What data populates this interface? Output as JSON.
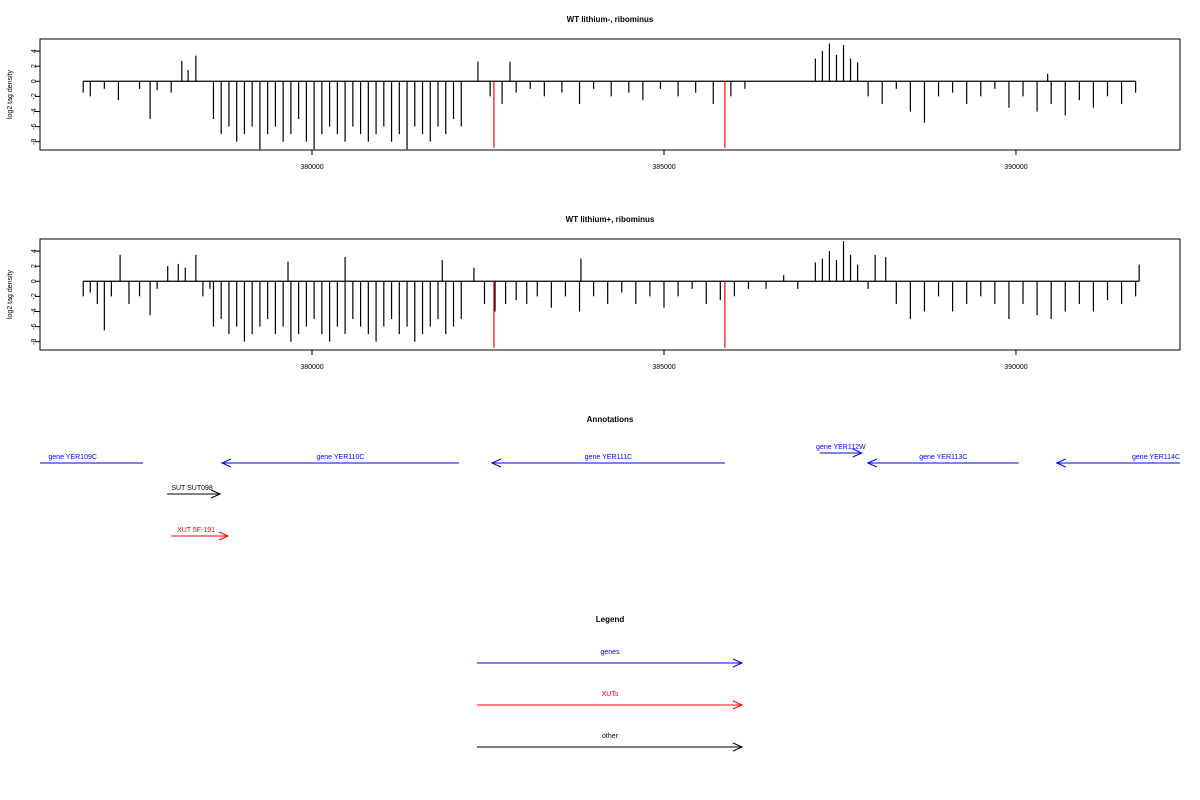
{
  "chart_data": [
    {
      "type": "bar",
      "title": "WT lithium-, ribominus",
      "ylabel": "log2 tag density",
      "color": "#000000",
      "xlim": [
        376136,
        392330
      ],
      "ylim": [
        -9.1,
        5.6
      ],
      "xticks": [
        380000,
        385000,
        390000
      ],
      "yticks": [
        -8,
        -6,
        -4,
        -2,
        0,
        2,
        4
      ],
      "x": [
        376750,
        376850,
        377050,
        377250,
        377550,
        377700,
        377800,
        378000,
        378150,
        378240,
        378350,
        378600,
        378710,
        378820,
        378930,
        379040,
        379150,
        379260,
        379370,
        379480,
        379590,
        379700,
        379810,
        379920,
        380030,
        380140,
        380250,
        380360,
        380470,
        380580,
        380690,
        380800,
        380910,
        381020,
        381130,
        381240,
        381350,
        381460,
        381570,
        381680,
        381790,
        381900,
        382010,
        382120,
        382357,
        382530,
        382700,
        382812,
        382900,
        383100,
        383300,
        383550,
        383800,
        384000,
        384250,
        384500,
        384700,
        384950,
        385200,
        385450,
        385700,
        385950,
        386150,
        387150,
        387250,
        387350,
        387450,
        387550,
        387650,
        387750,
        387900,
        388100,
        388300,
        388500,
        388700,
        388900,
        389100,
        389300,
        389500,
        389700,
        389900,
        390100,
        390300,
        390450,
        390500,
        390700,
        390900,
        391100,
        391300,
        391500,
        391700
      ],
      "values": [
        -1.5,
        -2,
        -1,
        -2.5,
        -1,
        -5,
        -1.2,
        -1.5,
        2.7,
        1.5,
        3.4,
        -5,
        -7,
        -6,
        -8,
        -7,
        -6,
        -9,
        -7,
        -6,
        -8,
        -7,
        -5,
        -8,
        -9,
        -7,
        -6,
        -7,
        -8,
        -6,
        -7,
        -8,
        -7,
        -6,
        -8,
        -7,
        -9,
        -6,
        -7,
        -8,
        -6,
        -7,
        -5,
        -6,
        2.6,
        -2,
        -3,
        2.6,
        -1.5,
        -1,
        -2,
        -1.5,
        -3,
        -1,
        -2,
        -1.5,
        -2.5,
        -1,
        -2,
        -1.5,
        -3,
        -2,
        -1,
        3,
        4,
        5,
        3.5,
        4.8,
        3,
        2.5,
        -2,
        -3,
        -1,
        -4,
        -5.5,
        -2,
        -1.5,
        -3,
        -2,
        -1,
        -3.5,
        -2,
        -4,
        1,
        -3,
        -4.5,
        -2.5,
        -3.5,
        -2,
        -3,
        -1.5
      ],
      "markers": {
        "color": "#ff0000",
        "x": [
          382584,
          385865
        ],
        "values": [
          -8.8,
          -8.8
        ]
      }
    },
    {
      "type": "bar",
      "title": "WT lithium+, ribominus",
      "ylabel": "log2 tag density",
      "color": "#000000",
      "xlim": [
        376136,
        392330
      ],
      "ylim": [
        -9.1,
        5.6
      ],
      "xticks": [
        380000,
        385000,
        390000
      ],
      "yticks": [
        -8,
        -6,
        -4,
        -2,
        0,
        2,
        4
      ],
      "x": [
        376750,
        376850,
        376950,
        377050,
        377150,
        377274,
        377400,
        377550,
        377700,
        377800,
        377950,
        378100,
        378200,
        378350,
        378450,
        378550,
        378600,
        378710,
        378820,
        378930,
        379040,
        379150,
        379260,
        379370,
        379480,
        379590,
        379700,
        379810,
        379920,
        380030,
        380140,
        380250,
        380360,
        380470,
        380580,
        380690,
        380800,
        380910,
        381020,
        381130,
        381240,
        381350,
        381460,
        381570,
        381680,
        381790,
        381900,
        382010,
        382120,
        379659,
        380470,
        381850,
        382300,
        382450,
        382600,
        382750,
        382900,
        383050,
        383200,
        383400,
        383600,
        383800,
        383820,
        384000,
        384200,
        384400,
        384600,
        384800,
        385000,
        385200,
        385400,
        385600,
        385800,
        386000,
        386200,
        386450,
        386700,
        386900,
        387150,
        387250,
        387350,
        387450,
        387550,
        387650,
        387750,
        387900,
        388000,
        388150,
        388300,
        388500,
        388700,
        388900,
        389100,
        389300,
        389500,
        389700,
        389900,
        390100,
        390300,
        390500,
        390700,
        390900,
        391100,
        391300,
        391500,
        391700,
        391750
      ],
      "values": [
        -2,
        -1.5,
        -3,
        -6.5,
        -2,
        3.5,
        -3,
        -2,
        -4.5,
        -1,
        2,
        2.3,
        1.8,
        3.5,
        -2,
        -1,
        -6,
        -5,
        -7,
        -6,
        -8,
        -7,
        -6,
        -5,
        -7,
        -6,
        -8,
        -7,
        -6,
        -5,
        -7,
        -8,
        -6,
        -7,
        -5,
        -6,
        -7,
        -8,
        -6,
        -5,
        -7,
        -6,
        -8,
        -7,
        -6,
        -5,
        -7,
        -6,
        -5,
        2.6,
        3.2,
        2.8,
        1.8,
        -3,
        -4,
        -3,
        -2.5,
        -3,
        -2,
        -3.5,
        -2,
        -4,
        3,
        -2,
        -3,
        -1.5,
        -3,
        -2,
        -3.5,
        -2,
        -1,
        -3,
        -2.5,
        -2,
        -1,
        -1,
        0.8,
        -1,
        2.5,
        3,
        4,
        2.8,
        5.3,
        3.5,
        2.2,
        -1,
        3.5,
        3.2,
        -3,
        -5,
        -4,
        -2,
        -4,
        -3,
        -2,
        -3,
        -5,
        -3,
        -4.5,
        -5,
        -4,
        -3,
        -4,
        -2.5,
        -3,
        -2,
        2.2
      ],
      "markers": {
        "color": "#ff0000",
        "x": [
          382584,
          385865
        ],
        "values": [
          -8.8,
          -8.8
        ]
      }
    }
  ],
  "annotations": {
    "title": "Annotations",
    "features": [
      {
        "label": "gene YER109C",
        "color": "#0000ff",
        "start": 375600,
        "end": 377600,
        "strand": "-",
        "row": 0
      },
      {
        "label": "gene YER110C",
        "color": "#0000ff",
        "start": 378722,
        "end": 382087,
        "strand": "-",
        "row": 0
      },
      {
        "label": "gene YER111C",
        "color": "#0000ff",
        "start": 382556,
        "end": 385865,
        "strand": "-",
        "row": 0
      },
      {
        "label": "gene YER112W",
        "color": "#0000ff",
        "start": 387214,
        "end": 387810,
        "strand": "+",
        "row": -1
      },
      {
        "label": "gene YER113C",
        "color": "#0000ff",
        "start": 387895,
        "end": 390039,
        "strand": "-",
        "row": 0
      },
      {
        "label": "gene YER114C",
        "color": "#0000ff",
        "start": 390579,
        "end": 393400,
        "strand": "-",
        "row": 0
      },
      {
        "label": "SUT SUT098",
        "color": "#000000",
        "start": 377941,
        "end": 378694,
        "strand": "+",
        "row": 1
      },
      {
        "label": "XUT 5F-191",
        "color": "#ff0000",
        "start": 377998,
        "end": 378807,
        "strand": "+",
        "row": 2
      }
    ]
  },
  "legend": {
    "title": "Legend",
    "entries": [
      {
        "name": "genes",
        "color": "#0000ff"
      },
      {
        "name": "XUTs",
        "color": "#ff0000"
      },
      {
        "name": "other",
        "color": "#000000"
      }
    ]
  }
}
